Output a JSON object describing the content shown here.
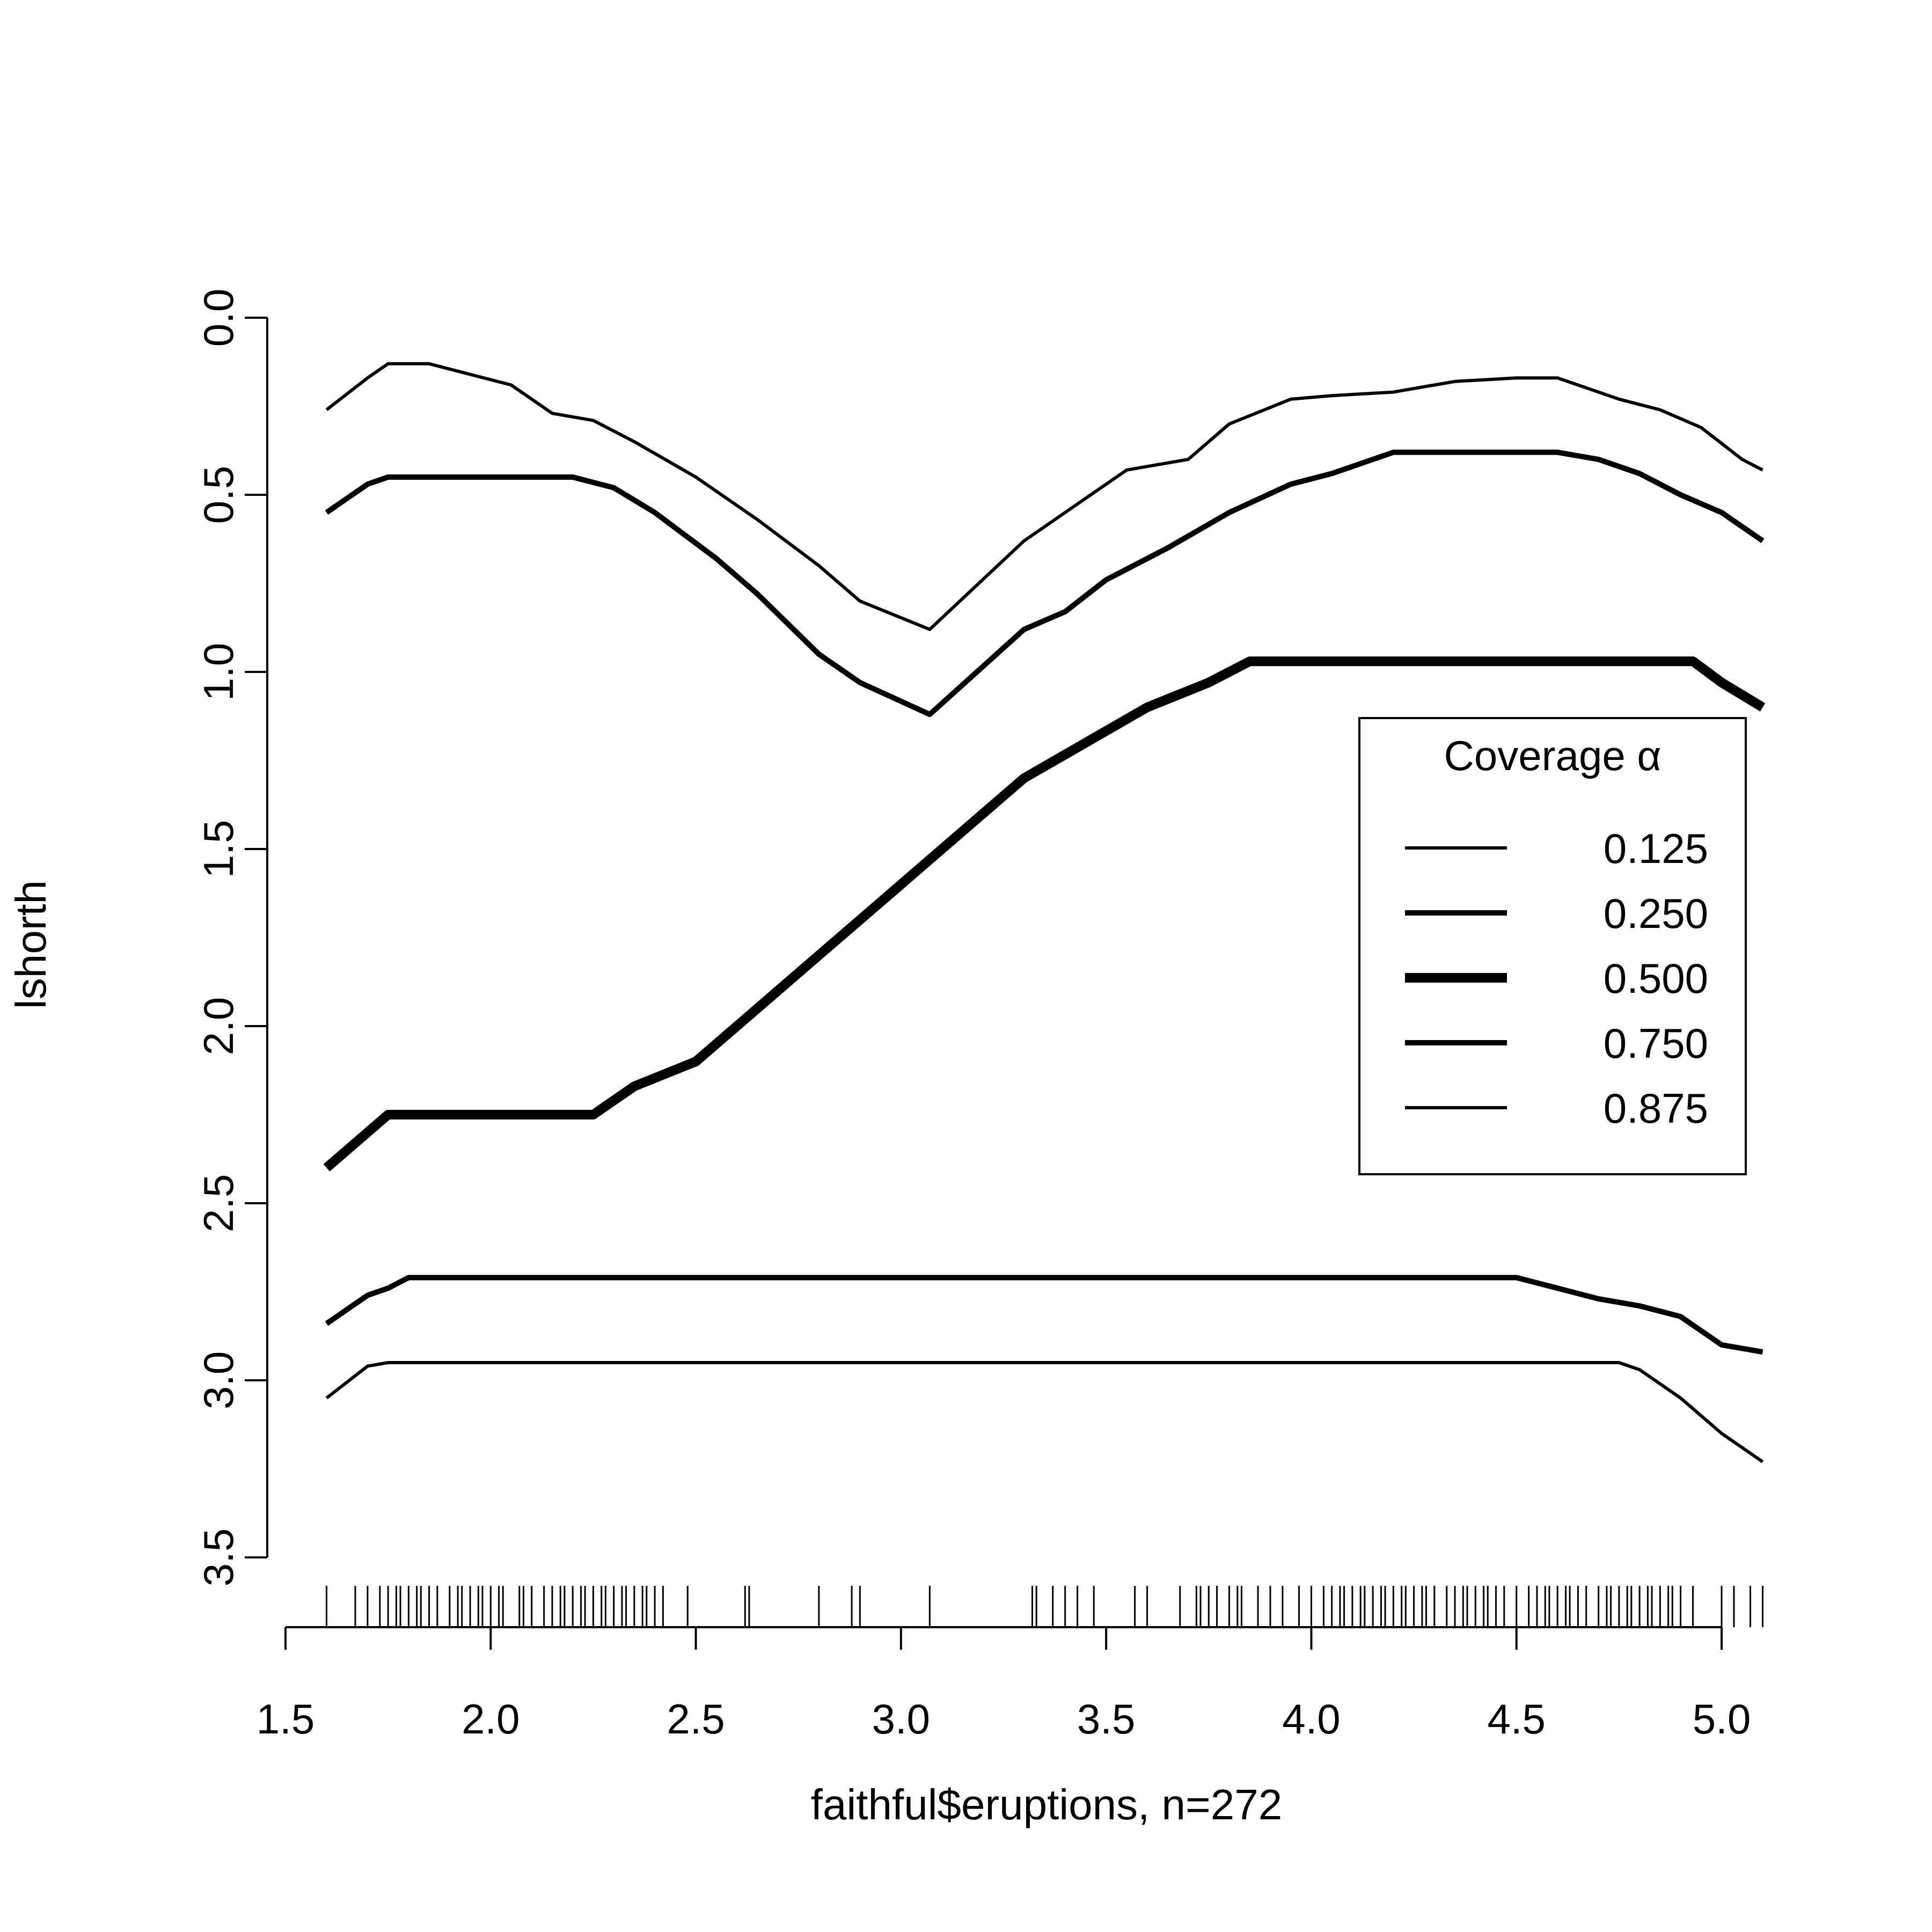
{
  "chart_data": {
    "type": "line",
    "xlabel": "faithful$eruptions, n=272",
    "ylabel": "lshorth",
    "xlim": [
      1.5,
      5.1
    ],
    "ylim": [
      0,
      3.5
    ],
    "y_reversed": true,
    "x_ticks": [
      1.5,
      2.0,
      2.5,
      3.0,
      3.5,
      4.0,
      4.5,
      5.0
    ],
    "x_tick_labels": [
      "1.5",
      "2.0",
      "2.5",
      "3.0",
      "3.5",
      "4.0",
      "4.5",
      "5.0"
    ],
    "y_ticks": [
      0,
      0.5,
      1.0,
      1.5,
      2.0,
      2.5,
      3.0,
      3.5
    ],
    "y_tick_labels": [
      "0.0",
      "0.5",
      "1.0",
      "1.5",
      "2.0",
      "2.5",
      "3.0",
      "3.5"
    ],
    "legend": {
      "title": "Coverage α",
      "placement": "right"
    },
    "series": [
      {
        "name": "0.125",
        "line_width": 3,
        "x": [
          1.6,
          1.7,
          1.75,
          1.85,
          1.95,
          2.05,
          2.15,
          2.25,
          2.35,
          2.5,
          2.65,
          2.8,
          2.9,
          3.07,
          3.3,
          3.55,
          3.7,
          3.8,
          3.95,
          4.05,
          4.2,
          4.35,
          4.5,
          4.6,
          4.75,
          4.85,
          4.95,
          5.05,
          5.1
        ],
        "y": [
          0.26,
          0.17,
          0.13,
          0.13,
          0.16,
          0.19,
          0.27,
          0.29,
          0.35,
          0.45,
          0.57,
          0.7,
          0.8,
          0.88,
          0.63,
          0.43,
          0.4,
          0.3,
          0.23,
          0.22,
          0.21,
          0.18,
          0.17,
          0.17,
          0.23,
          0.26,
          0.31,
          0.4,
          0.43
        ]
      },
      {
        "name": "0.250",
        "line_width": 5,
        "x": [
          1.6,
          1.7,
          1.75,
          2.0,
          2.2,
          2.3,
          2.4,
          2.55,
          2.65,
          2.8,
          2.9,
          3.07,
          3.3,
          3.4,
          3.5,
          3.65,
          3.8,
          3.95,
          4.05,
          4.2,
          4.4,
          4.6,
          4.7,
          4.8,
          4.9,
          5.0,
          5.1
        ],
        "y": [
          0.55,
          0.47,
          0.45,
          0.45,
          0.45,
          0.48,
          0.55,
          0.68,
          0.78,
          0.95,
          1.03,
          1.12,
          0.88,
          0.83,
          0.74,
          0.65,
          0.55,
          0.47,
          0.44,
          0.38,
          0.38,
          0.38,
          0.4,
          0.44,
          0.5,
          0.55,
          0.63
        ]
      },
      {
        "name": "0.500",
        "line_width": 9,
        "x": [
          1.6,
          1.75,
          2.0,
          2.25,
          2.35,
          2.5,
          2.65,
          2.8,
          3.0,
          3.15,
          3.3,
          3.45,
          3.6,
          3.75,
          3.85,
          4.0,
          4.5,
          4.93,
          5.0,
          5.1
        ],
        "y": [
          2.4,
          2.25,
          2.25,
          2.25,
          2.17,
          2.1,
          1.95,
          1.8,
          1.6,
          1.45,
          1.3,
          1.2,
          1.1,
          1.03,
          0.97,
          0.97,
          0.97,
          0.97,
          1.03,
          1.1
        ]
      },
      {
        "name": "0.750",
        "line_width": 5,
        "x": [
          1.6,
          1.7,
          1.75,
          1.8,
          2.5,
          3.0,
          4.0,
          4.5,
          4.6,
          4.7,
          4.8,
          4.9,
          5.0,
          5.1
        ],
        "y": [
          2.84,
          2.76,
          2.74,
          2.71,
          2.71,
          2.71,
          2.71,
          2.71,
          2.74,
          2.77,
          2.79,
          2.82,
          2.9,
          2.92
        ]
      },
      {
        "name": "0.875",
        "line_width": 3,
        "x": [
          1.6,
          1.7,
          1.75,
          2.0,
          3.0,
          4.0,
          4.5,
          4.75,
          4.8,
          4.9,
          5.0,
          5.1
        ],
        "y": [
          3.05,
          2.96,
          2.95,
          2.95,
          2.95,
          2.95,
          2.95,
          2.95,
          2.97,
          3.05,
          3.15,
          3.23
        ]
      }
    ],
    "rug": [
      1.6,
      1.67,
      1.7,
      1.73,
      1.75,
      1.77,
      1.78,
      1.8,
      1.82,
      1.83,
      1.85,
      1.87,
      1.9,
      1.92,
      1.93,
      1.95,
      1.97,
      1.98,
      2.0,
      2.02,
      2.03,
      2.07,
      2.08,
      2.1,
      2.13,
      2.15,
      2.17,
      2.18,
      2.2,
      2.22,
      2.23,
      2.25,
      2.27,
      2.28,
      2.3,
      2.32,
      2.33,
      2.35,
      2.37,
      2.38,
      2.4,
      2.42,
      2.48,
      2.62,
      2.63,
      2.8,
      2.88,
      2.9,
      3.07,
      3.32,
      3.33,
      3.37,
      3.4,
      3.43,
      3.47,
      3.57,
      3.6,
      3.68,
      3.72,
      3.73,
      3.75,
      3.77,
      3.8,
      3.82,
      3.83,
      3.87,
      3.9,
      3.93,
      3.97,
      4.0,
      4.03,
      4.05,
      4.07,
      4.08,
      4.1,
      4.12,
      4.13,
      4.15,
      4.17,
      4.18,
      4.2,
      4.22,
      4.23,
      4.25,
      4.27,
      4.28,
      4.3,
      4.33,
      4.35,
      4.37,
      4.38,
      4.4,
      4.42,
      4.43,
      4.45,
      4.47,
      4.5,
      4.53,
      4.55,
      4.57,
      4.58,
      4.6,
      4.62,
      4.63,
      4.65,
      4.67,
      4.7,
      4.72,
      4.73,
      4.75,
      4.77,
      4.78,
      4.8,
      4.82,
      4.83,
      4.85,
      4.87,
      4.88,
      4.9,
      4.93,
      5.0,
      5.03,
      5.07,
      5.1
    ]
  }
}
